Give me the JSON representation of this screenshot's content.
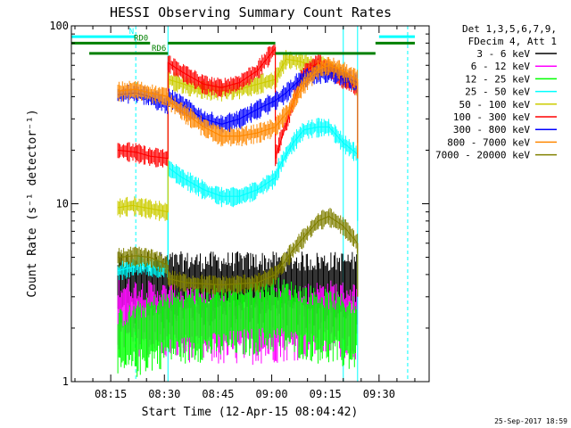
{
  "chart_data": {
    "type": "line",
    "title": "HESSI Observing Summary Count Rates",
    "xlabel": "Start Time (12-Apr-15 08:04:42)",
    "ylabel": "Count Rate (s⁻¹ detector⁻¹)",
    "yscale": "log",
    "ylim": [
      1,
      100
    ],
    "xlim": [
      "08:04",
      "09:44"
    ],
    "x_ticks": [
      "08:15",
      "08:30",
      "08:45",
      "09:00",
      "09:15",
      "09:30"
    ],
    "y_ticks": [
      "1",
      "10",
      "100"
    ],
    "grid": false,
    "legend_position": "right",
    "legend_header": [
      "Det 1,3,5,6,7,9,",
      "FDecim 4, Att 1"
    ],
    "timestamp": "25-Sep-2017 18:59",
    "flags": [
      {
        "name": "N",
        "color": "#00ffff",
        "segments": [
          [
            "08:04",
            "08:22"
          ],
          [
            "09:30",
            "09:40"
          ]
        ],
        "level": 87
      },
      {
        "name": "RD0",
        "color": "#008000",
        "segments": [
          [
            "08:04",
            "08:26"
          ],
          [
            "08:31",
            "09:01"
          ],
          [
            "09:29",
            "09:40"
          ]
        ],
        "level": 80
      },
      {
        "name": "RD6",
        "color": "#008000",
        "segments": [
          [
            "08:09",
            "08:31"
          ],
          [
            "09:01",
            "09:29"
          ]
        ],
        "level": 70
      }
    ],
    "markers": {
      "solid": [
        "08:31",
        "09:20",
        "09:24"
      ],
      "dashed": [
        "08:22",
        "09:38"
      ]
    },
    "series": [
      {
        "name": "3 - 6 keV",
        "color": "#000000",
        "style": "noise",
        "points": [
          [
            "08:17",
            3.6
          ],
          [
            "08:31",
            3.6
          ],
          [
            "08:46",
            3.6
          ],
          [
            "09:01",
            3.6
          ],
          [
            "09:16",
            3.6
          ],
          [
            "09:24",
            3.6
          ]
        ]
      },
      {
        "name": "6 - 12 keV",
        "color": "#ff00ff",
        "style": "noise",
        "points": [
          [
            "08:17",
            2.6
          ],
          [
            "08:31",
            2.4
          ],
          [
            "08:46",
            2.2
          ],
          [
            "09:01",
            2.3
          ],
          [
            "09:16",
            2.5
          ],
          [
            "09:24",
            2.4
          ]
        ]
      },
      {
        "name": "12 - 25 keV",
        "color": "#00ff00",
        "style": "noise",
        "points": [
          [
            "08:17",
            1.7
          ],
          [
            "08:31",
            2.2
          ],
          [
            "08:46",
            2.4
          ],
          [
            "09:01",
            2.6
          ],
          [
            "09:16",
            2.2
          ],
          [
            "09:24",
            2.0
          ]
        ]
      },
      {
        "name": "25 - 50 keV",
        "color": "#00ffff",
        "style": "line",
        "points": [
          [
            "08:17",
            4.2
          ],
          [
            "08:21",
            4.4
          ],
          [
            "08:23",
            4.6
          ],
          [
            "08:26",
            4.4
          ],
          [
            "08:31",
            4.3
          ],
          [
            "08:31",
            16
          ],
          [
            "08:35",
            14
          ],
          [
            "08:41",
            12
          ],
          [
            "08:46",
            11
          ],
          [
            "08:51",
            11
          ],
          [
            "08:56",
            12
          ],
          [
            "09:01",
            14
          ],
          [
            "09:02",
            16
          ],
          [
            "09:06",
            22
          ],
          [
            "09:09",
            26
          ],
          [
            "09:13",
            27
          ],
          [
            "09:16",
            27
          ],
          [
            "09:20",
            22
          ],
          [
            "09:24",
            19
          ],
          [
            "09:24",
            8
          ]
        ]
      },
      {
        "name": "50 - 100 keV",
        "color": "#cccc00",
        "style": "line",
        "points": [
          [
            "08:17",
            9.5
          ],
          [
            "08:21",
            9.8
          ],
          [
            "08:26",
            9.4
          ],
          [
            "08:31",
            9.0
          ],
          [
            "08:31",
            50
          ],
          [
            "08:34",
            48
          ],
          [
            "08:40",
            44
          ],
          [
            "08:46",
            43
          ],
          [
            "08:51",
            44
          ],
          [
            "08:56",
            47
          ],
          [
            "09:01",
            50
          ],
          [
            "09:04",
            65
          ],
          [
            "09:08",
            63
          ],
          [
            "09:11",
            60
          ],
          [
            "09:14",
            60
          ],
          [
            "09:18",
            56
          ],
          [
            "09:21",
            50
          ],
          [
            "09:24",
            44
          ],
          [
            "09:24",
            22
          ]
        ]
      },
      {
        "name": "100 - 300 keV",
        "color": "#ff0000",
        "style": "line",
        "points": [
          [
            "08:17",
            20
          ],
          [
            "08:22",
            19.5
          ],
          [
            "08:26",
            18.5
          ],
          [
            "08:31",
            18
          ],
          [
            "08:31",
            62
          ],
          [
            "08:35",
            55
          ],
          [
            "08:41",
            47
          ],
          [
            "08:46",
            45
          ],
          [
            "08:51",
            48
          ],
          [
            "08:56",
            56
          ],
          [
            "09:01",
            75
          ],
          [
            "09:01",
            18
          ],
          [
            "09:05",
            32
          ],
          [
            "09:09",
            55
          ],
          [
            "09:13",
            62
          ],
          [
            "09:16",
            57
          ],
          [
            "09:20",
            50
          ],
          [
            "09:24",
            45
          ],
          [
            "09:24",
            18
          ]
        ]
      },
      {
        "name": "300 - 800 keV",
        "color": "#0000ff",
        "style": "line",
        "points": [
          [
            "08:17",
            41
          ],
          [
            "08:22",
            42
          ],
          [
            "08:26",
            40
          ],
          [
            "08:31",
            36
          ],
          [
            "08:31",
            40
          ],
          [
            "08:36",
            35
          ],
          [
            "08:41",
            30
          ],
          [
            "08:46",
            28
          ],
          [
            "08:51",
            30
          ],
          [
            "08:56",
            34
          ],
          [
            "09:01",
            38
          ],
          [
            "09:04",
            42
          ],
          [
            "09:08",
            50
          ],
          [
            "09:13",
            54
          ],
          [
            "09:16",
            55
          ],
          [
            "09:20",
            52
          ],
          [
            "09:24",
            48
          ],
          [
            "09:24",
            22
          ]
        ]
      },
      {
        "name": "800 - 7000 keV",
        "color": "#ff8800",
        "style": "line",
        "points": [
          [
            "08:17",
            43
          ],
          [
            "08:22",
            44
          ],
          [
            "08:26",
            42
          ],
          [
            "08:31",
            40
          ],
          [
            "08:31",
            38
          ],
          [
            "08:36",
            32
          ],
          [
            "08:41",
            27
          ],
          [
            "08:46",
            24
          ],
          [
            "08:51",
            24
          ],
          [
            "08:56",
            25
          ],
          [
            "09:01",
            27
          ],
          [
            "09:05",
            34
          ],
          [
            "09:09",
            47
          ],
          [
            "09:13",
            57
          ],
          [
            "09:16",
            60
          ],
          [
            "09:20",
            56
          ],
          [
            "09:24",
            50
          ],
          [
            "09:24",
            18
          ]
        ]
      },
      {
        "name": "7000 - 20000 keV",
        "color": "#808000",
        "style": "line",
        "points": [
          [
            "08:17",
            5.0
          ],
          [
            "08:22",
            5.1
          ],
          [
            "08:26",
            5.0
          ],
          [
            "08:31",
            4.5
          ],
          [
            "08:31",
            3.8
          ],
          [
            "08:36",
            3.6
          ],
          [
            "08:46",
            3.5
          ],
          [
            "08:56",
            3.6
          ],
          [
            "09:01",
            4.0
          ],
          [
            "09:05",
            5.2
          ],
          [
            "09:09",
            6.5
          ],
          [
            "09:13",
            8.0
          ],
          [
            "09:16",
            8.5
          ],
          [
            "09:20",
            7.5
          ],
          [
            "09:24",
            6.0
          ],
          [
            "09:24",
            3.0
          ]
        ]
      }
    ]
  }
}
